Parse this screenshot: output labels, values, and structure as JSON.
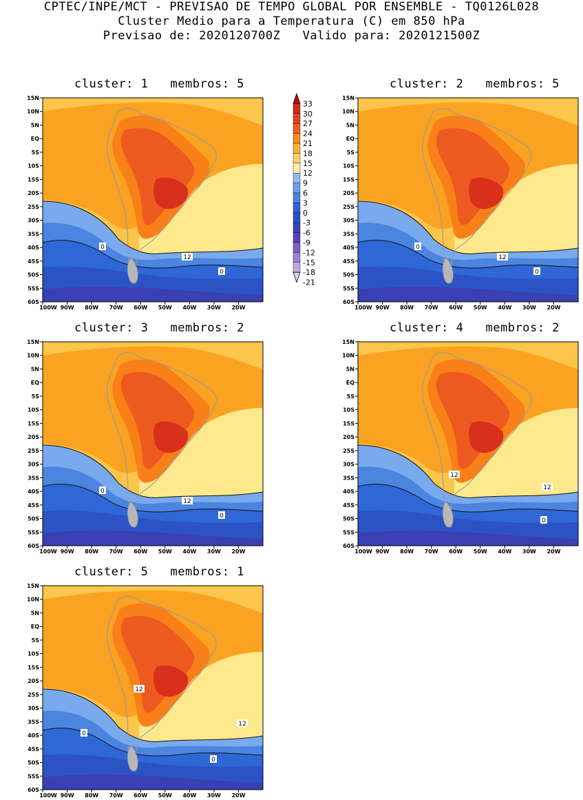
{
  "header": {
    "line1": "CPTEC/INPE/MCT - PREVISAO DE TEMPO GLOBAL POR ENSEMBLE - TQ0126L028",
    "line2": "Cluster Medio para a Temperatura (C) em 850 hPa",
    "line3": "Previsao de: 2020120700Z   Valido para: 2020121500Z"
  },
  "axes": {
    "lat_labels": [
      "15N",
      "10N",
      "5N",
      "EQ",
      "5S",
      "10S",
      "15S",
      "20S",
      "25S",
      "30S",
      "35S",
      "40S",
      "45S",
      "50S",
      "55S",
      "60S"
    ],
    "lon_labels": [
      "100W",
      "90W",
      "80W",
      "70W",
      "60W",
      "50W",
      "40W",
      "30W",
      "20W"
    ]
  },
  "colorbar": {
    "levels": [
      "33",
      "30",
      "27",
      "24",
      "21",
      "18",
      "15",
      "12",
      "9",
      "6",
      "3",
      "0",
      "-3",
      "-6",
      "-9",
      "-12",
      "-15",
      "-18",
      "-21"
    ],
    "colors": [
      "#b80d0d",
      "#cf2a1f",
      "#e2401f",
      "#f05d23",
      "#f98c1e",
      "#fbb13e",
      "#fbd26a",
      "#fde9a2",
      "#8fbbf1",
      "#6ea1ea",
      "#4b82e0",
      "#2f63d3",
      "#2752c4",
      "#3f3fb7",
      "#5844b8",
      "#7a61c4",
      "#9c84d3",
      "#bcaadf",
      "#dcd0ee"
    ]
  },
  "palette": {
    "t_m6": "#3a3fb2",
    "t_m3": "#2b53c6",
    "t_0": "#2f68d6",
    "t_3": "#4b85e0",
    "t_6": "#79aaee",
    "t_9": "#fde88c",
    "t_12": "#fcc54b",
    "t_15": "#faa322",
    "t_18": "#f98018",
    "t_21": "#ed5a1f",
    "t_24": "#d9301c",
    "coast": "#9a9a9a"
  },
  "panels": [
    {
      "title": "cluster: 1   membros: 5",
      "labels": [
        "0",
        "12",
        "0"
      ]
    },
    {
      "title": "cluster: 2   membros: 5",
      "labels": [
        "0",
        "12",
        "0"
      ]
    },
    {
      "title": "cluster: 3   membros: 2",
      "labels": [
        "0",
        "12",
        "0"
      ]
    },
    {
      "title": "cluster: 4   membros: 2",
      "labels": [
        "12",
        "12",
        "0"
      ]
    },
    {
      "title": "cluster: 5   membros: 1",
      "labels": [
        "12",
        "0",
        "12",
        "0"
      ]
    }
  ]
}
